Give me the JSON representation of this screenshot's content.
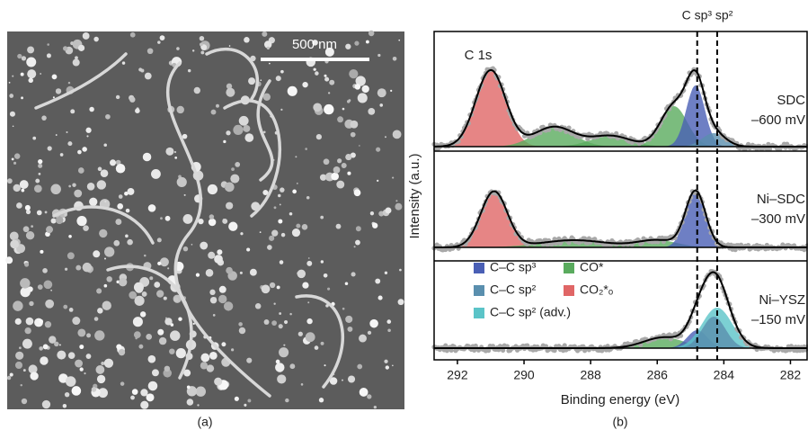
{
  "figure": {
    "panel_a_label": "(a)",
    "scale_bar": "500 nm",
    "panel_b_label": "(b)"
  },
  "chart_data": {
    "type": "line",
    "xlabel": "Binding energy (eV)",
    "ylabel": "Intensity (a.u.)",
    "peak_label": "C 1s",
    "annotation": "C sp³ sp²",
    "reference_lines": [
      284.8,
      284.2
    ],
    "xlim": [
      292.7,
      281.5
    ],
    "xticks": [
      292,
      290,
      288,
      286,
      284,
      282
    ],
    "series": [
      {
        "name": "C–C sp³",
        "color": "#4a5fb5"
      },
      {
        "name": "C–C sp²",
        "color": "#5a8fae"
      },
      {
        "name": "C–C sp² (adv.)",
        "color": "#5bc4c8"
      },
      {
        "name": "CO*",
        "color": "#5aab5e"
      },
      {
        "name": "CO₂*ₒ",
        "color": "#e06666"
      }
    ],
    "panels": [
      {
        "labels": [
          "SDC",
          "–600 mV"
        ],
        "peaks": [
          {
            "series": 4,
            "center": 291.0,
            "height": 85,
            "width": 0.45
          },
          {
            "series": 3,
            "center": 289.1,
            "height": 22,
            "width": 0.6
          },
          {
            "series": 3,
            "center": 287.4,
            "height": 12,
            "width": 0.6
          },
          {
            "series": 3,
            "center": 285.5,
            "height": 45,
            "width": 0.4
          },
          {
            "series": 0,
            "center": 284.85,
            "height": 68,
            "width": 0.28
          },
          {
            "series": 1,
            "center": 284.3,
            "height": 15,
            "width": 0.35
          }
        ]
      },
      {
        "labels": [
          "Ni–SDC",
          "–300 mV"
        ],
        "peaks": [
          {
            "series": 4,
            "center": 290.9,
            "height": 62,
            "width": 0.4
          },
          {
            "series": 3,
            "center": 288.5,
            "height": 8,
            "width": 1.0
          },
          {
            "series": 3,
            "center": 286.0,
            "height": 8,
            "width": 0.6
          },
          {
            "series": 0,
            "center": 284.85,
            "height": 62,
            "width": 0.3
          }
        ]
      },
      {
        "labels": [
          "Ni–YSZ",
          "–150 mV"
        ],
        "peaks": [
          {
            "series": 3,
            "center": 285.8,
            "height": 12,
            "width": 0.6
          },
          {
            "series": 0,
            "center": 284.8,
            "height": 20,
            "width": 0.3
          },
          {
            "series": 2,
            "center": 284.2,
            "height": 45,
            "width": 0.45
          },
          {
            "series": 1,
            "center": 284.3,
            "height": 35,
            "width": 0.35
          }
        ]
      }
    ]
  }
}
